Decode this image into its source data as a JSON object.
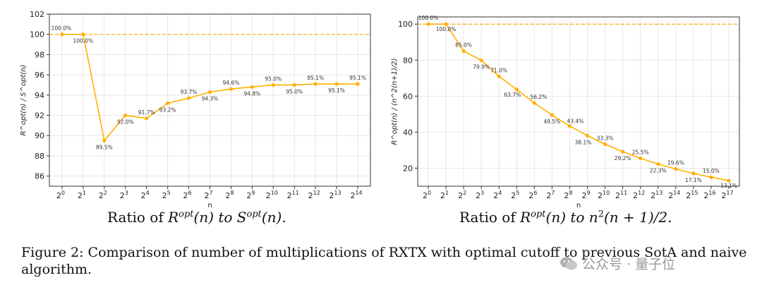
{
  "chart_data": [
    {
      "type": "line",
      "ylabel": "R^opt(n) / S^opt(n)",
      "xlabel": "n",
      "ylim": [
        85,
        102
      ],
      "yticks": [
        86,
        88,
        90,
        92,
        94,
        96,
        98,
        100,
        102
      ],
      "reference_line": 100,
      "color": "#FFB000",
      "x_exponents": [
        0,
        1,
        2,
        3,
        4,
        5,
        6,
        7,
        8,
        9,
        10,
        11,
        12,
        13,
        14
      ],
      "x_base": "2",
      "values": [
        100.0,
        100.0,
        89.5,
        92.0,
        91.7,
        93.2,
        93.7,
        94.3,
        94.6,
        94.8,
        95.0,
        95.0,
        95.1,
        95.1,
        95.1
      ],
      "data_labels": [
        "100.0%",
        "100.0%",
        "89.5%",
        "92.0%",
        "91.7%",
        "93.2%",
        "93.7%",
        "94.3%",
        "94.6%",
        "94.8%",
        "95.0%",
        "95.0%",
        "95.1%",
        "95.1%",
        "95.1%"
      ],
      "grid": true
    },
    {
      "type": "line",
      "ylabel": "R^opt(n) / (n^2(n+1)/2)",
      "xlabel": "n",
      "ylim": [
        10,
        104
      ],
      "yticks": [
        20,
        40,
        60,
        80,
        100
      ],
      "reference_line": 100,
      "color": "#FFB000",
      "x_exponents": [
        0,
        1,
        2,
        3,
        4,
        5,
        6,
        7,
        8,
        9,
        10,
        11,
        12,
        13,
        14,
        15,
        16,
        17
      ],
      "x_base": "2",
      "values": [
        100.0,
        100.0,
        85.0,
        79.9,
        71.0,
        63.7,
        56.2,
        49.5,
        43.4,
        38.1,
        33.3,
        29.2,
        25.5,
        22.3,
        19.6,
        17.1,
        15.0,
        13.1
      ],
      "data_labels": [
        "100.0%",
        "100.0%",
        "85.0%",
        "79.9%",
        "71.0%",
        "63.7%",
        "56.2%",
        "49.5%",
        "43.4%",
        "38.1%",
        "33.3%",
        "29.2%",
        "25.5%",
        "22.3%",
        "19.6%",
        "17.1%",
        "15.0%",
        "13.1%"
      ],
      "grid": true
    }
  ],
  "captions": {
    "left_prefix": "Ratio of ",
    "left_r": "R",
    "left_r_sup": "opt",
    "left_mid": "(n) to ",
    "left_s": "S",
    "left_s_sup": "opt",
    "left_end": "(n).",
    "right_prefix": "Ratio of ",
    "right_r": "R",
    "right_r_sup": "opt",
    "right_mid": "(n) to ",
    "right_n": "n",
    "right_n_sup": "2",
    "right_end": "(n + 1)/2."
  },
  "figure_caption": "Figure 2: Comparison of number of multiplications of RXTX with optimal cutoff to previous SotA and naive algorithm.",
  "watermark": "公众号 · 量子位"
}
